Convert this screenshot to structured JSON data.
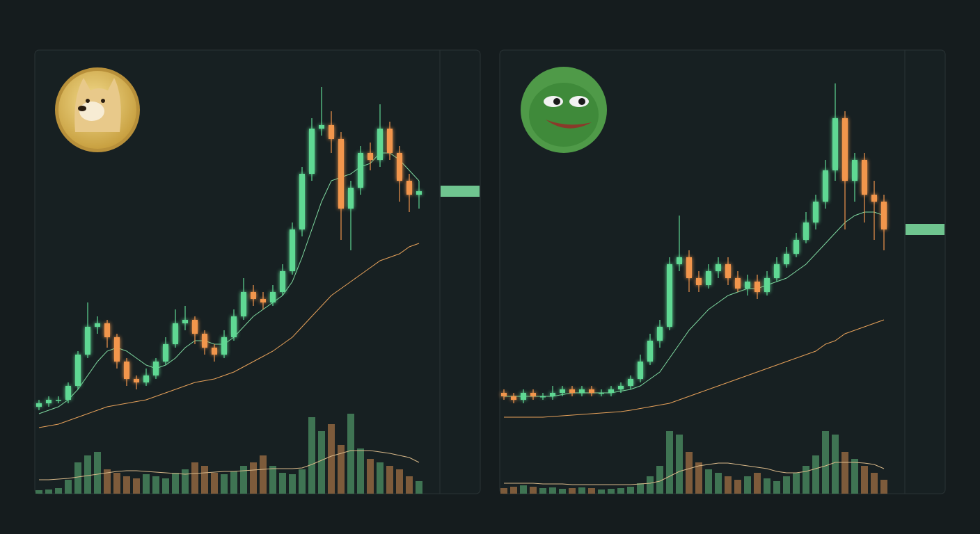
{
  "chart_data": [
    {
      "type": "candlestick",
      "open": [
        7,
        8,
        9,
        9,
        13,
        22,
        30,
        31,
        27,
        20,
        15,
        14,
        16,
        20,
        25,
        31,
        32,
        28,
        24,
        22,
        27,
        33,
        40,
        38,
        37,
        40,
        46,
        58,
        74,
        87,
        88,
        84,
        64,
        70,
        80,
        78,
        87,
        80,
        72,
        68
      ],
      "high": [
        9,
        10,
        10,
        14,
        23,
        37,
        33,
        32,
        28,
        21,
        16,
        18,
        21,
        27,
        35,
        36,
        33,
        29,
        25,
        29,
        35,
        44,
        42,
        40,
        42,
        48,
        60,
        76,
        90,
        99,
        92,
        86,
        72,
        82,
        83,
        94,
        89,
        82,
        74,
        72
      ],
      "low": [
        6,
        7,
        8,
        8,
        12,
        21,
        28,
        24,
        18,
        13,
        12,
        13,
        15,
        19,
        24,
        29,
        25,
        22,
        20,
        21,
        26,
        32,
        36,
        35,
        36,
        39,
        45,
        56,
        72,
        85,
        80,
        55,
        52,
        68,
        75,
        76,
        78,
        66,
        63,
        64
      ],
      "close": [
        8,
        9,
        9,
        13,
        22,
        30,
        31,
        27,
        20,
        15,
        14,
        16,
        20,
        25,
        31,
        32,
        28,
        24,
        22,
        27,
        33,
        40,
        38,
        37,
        40,
        46,
        58,
        74,
        87,
        88,
        84,
        64,
        70,
        80,
        78,
        87,
        80,
        72,
        68,
        69
      ],
      "up_color": "#5fd893",
      "down_color": "#f2964c",
      "ylim": [
        0,
        100
      ],
      "lines": [
        {
          "color": "#7fd9a0",
          "values": [
            5,
            6,
            7,
            9,
            12,
            16,
            20,
            23,
            24,
            23,
            21,
            19,
            18,
            19,
            21,
            24,
            26,
            26,
            25,
            25,
            27,
            30,
            33,
            35,
            37,
            39,
            43,
            50,
            58,
            66,
            72,
            73,
            74,
            76,
            77,
            80,
            80,
            78,
            75,
            72
          ]
        },
        {
          "color": "#e8a25a",
          "values": [
            1,
            1.5,
            2,
            3,
            4,
            5,
            6,
            7,
            7.5,
            8,
            8.5,
            9,
            10,
            11,
            12,
            13,
            14,
            14.5,
            15,
            16,
            17,
            18.5,
            20,
            21.5,
            23,
            25,
            27,
            30,
            33,
            36,
            39,
            41,
            43,
            45,
            47,
            49,
            50,
            51,
            53,
            54
          ]
        }
      ],
      "volume": [
        5,
        6,
        8,
        20,
        45,
        55,
        60,
        35,
        30,
        25,
        22,
        28,
        25,
        22,
        30,
        35,
        45,
        40,
        30,
        28,
        32,
        40,
        45,
        55,
        40,
        30,
        28,
        35,
        110,
        90,
        100,
        70,
        115,
        65,
        50,
        45,
        40,
        35,
        25,
        18
      ],
      "volume_line": [
        20,
        20,
        21,
        22,
        24,
        26,
        28,
        30,
        32,
        33,
        33,
        32,
        31,
        30,
        29,
        28,
        29,
        30,
        31,
        32,
        32,
        33,
        34,
        35,
        36,
        36,
        36,
        37,
        42,
        48,
        54,
        58,
        62,
        62,
        62,
        60,
        58,
        55,
        52,
        45
      ],
      "volume_lim": [
        0,
        130
      ],
      "volume_up_color": "#3f7453",
      "volume_down_color": "#7d5b3b",
      "volume_line_color": "#d9b98a",
      "marker_color": "#6fc48f"
    },
    {
      "type": "candlestick",
      "open": [
        11,
        10,
        9,
        11,
        10,
        10,
        11,
        12,
        11,
        12,
        11,
        11,
        12,
        13,
        15,
        20,
        26,
        30,
        48,
        50,
        44,
        42,
        46,
        48,
        44,
        41,
        43,
        40,
        44,
        48,
        51,
        55,
        60,
        66,
        75,
        90,
        72,
        78,
        68,
        66
      ],
      "high": [
        12,
        11,
        12,
        12,
        11,
        13,
        13,
        13,
        13,
        13,
        12,
        13,
        14,
        16,
        22,
        28,
        32,
        50,
        62,
        52,
        46,
        48,
        50,
        50,
        46,
        45,
        45,
        46,
        50,
        53,
        57,
        63,
        68,
        78,
        100,
        92,
        80,
        80,
        72,
        68
      ],
      "low": [
        9,
        8,
        8,
        9,
        9,
        9,
        10,
        10,
        10,
        10,
        10,
        10,
        11,
        12,
        14,
        19,
        24,
        29,
        46,
        40,
        40,
        41,
        44,
        42,
        40,
        39,
        38,
        39,
        43,
        47,
        50,
        54,
        58,
        64,
        72,
        58,
        66,
        60,
        55,
        52
      ],
      "close": [
        10,
        9,
        11,
        10,
        10,
        11,
        12,
        11,
        12,
        11,
        11,
        12,
        13,
        15,
        20,
        26,
        30,
        48,
        50,
        44,
        42,
        46,
        48,
        44,
        41,
        43,
        40,
        44,
        48,
        51,
        55,
        60,
        66,
        75,
        90,
        72,
        78,
        68,
        66,
        58
      ],
      "up_color": "#5fd893",
      "down_color": "#f2964c",
      "ylim": [
        0,
        100
      ],
      "lines": [
        {
          "color": "#7fd9a0",
          "values": [
            10,
            10,
            10,
            10,
            10,
            10,
            10.5,
            11,
            11,
            11,
            11,
            11,
            11.5,
            12,
            13,
            15,
            17,
            21,
            25,
            29,
            32,
            35,
            37,
            39,
            40,
            41,
            41,
            42,
            43,
            44,
            46,
            48,
            51,
            54,
            57,
            60,
            62,
            63,
            63,
            62
          ]
        },
        {
          "color": "#e8a25a",
          "values": [
            4,
            4,
            4,
            4,
            4,
            4.2,
            4.4,
            4.6,
            4.8,
            5,
            5.2,
            5.4,
            5.6,
            6,
            6.5,
            7,
            7.5,
            8,
            9,
            10,
            11,
            12,
            13,
            14,
            15,
            16,
            17,
            18,
            19,
            20,
            21,
            22,
            23,
            25,
            26,
            28,
            29,
            30,
            31,
            32
          ]
        }
      ],
      "volume": [
        8,
        10,
        12,
        10,
        8,
        9,
        7,
        8,
        9,
        8,
        6,
        7,
        8,
        10,
        15,
        25,
        40,
        90,
        85,
        60,
        45,
        35,
        30,
        25,
        20,
        25,
        30,
        22,
        18,
        25,
        30,
        40,
        55,
        90,
        85,
        60,
        50,
        40,
        30,
        20
      ],
      "volume_line": [
        15,
        15,
        15,
        15,
        14,
        14,
        14,
        13,
        13,
        13,
        13,
        13,
        13,
        13,
        14,
        15,
        18,
        25,
        32,
        36,
        40,
        42,
        44,
        44,
        42,
        40,
        38,
        36,
        32,
        30,
        30,
        32,
        36,
        40,
        45,
        45,
        45,
        44,
        42,
        36
      ],
      "volume_lim": [
        0,
        130
      ],
      "volume_up_color": "#3f7453",
      "volume_down_color": "#7d5b3b",
      "volume_line_color": "#d9b98a",
      "marker_color": "#6fc48f"
    }
  ]
}
